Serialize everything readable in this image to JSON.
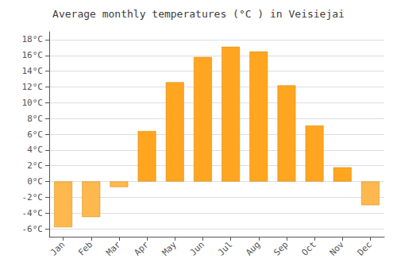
{
  "chart_data": {
    "type": "bar",
    "title": "Average monthly temperatures (°C ) in Veisiejai",
    "categories": [
      "Jan",
      "Feb",
      "Mar",
      "Apr",
      "May",
      "Jun",
      "Jul",
      "Aug",
      "Sep",
      "Oct",
      "Nov",
      "Dec"
    ],
    "values": [
      -5.8,
      -4.5,
      -0.7,
      6.4,
      12.6,
      15.8,
      17.1,
      16.5,
      12.2,
      7.1,
      1.8,
      -3.0
    ],
    "colors": [
      "#FFB84D",
      "#FFB84D",
      "#FFB84D",
      "#FFA520",
      "#FFA520",
      "#FFA520",
      "#FFA520",
      "#FFA520",
      "#FFA520",
      "#FFA520",
      "#FFA520",
      "#FFB84D"
    ],
    "ylim": [
      -7,
      19
    ],
    "yticks": [
      {
        "value": -6,
        "label": "-6°C"
      },
      {
        "value": -4,
        "label": "-4°C"
      },
      {
        "value": -2,
        "label": "-2°C"
      },
      {
        "value": 0,
        "label": "0°C"
      },
      {
        "value": 2,
        "label": "2°C"
      },
      {
        "value": 4,
        "label": "4°C"
      },
      {
        "value": 6,
        "label": "6°C"
      },
      {
        "value": 8,
        "label": "8°C"
      },
      {
        "value": 10,
        "label": "10°C"
      },
      {
        "value": 12,
        "label": "12°C"
      },
      {
        "value": 14,
        "label": "14°C"
      },
      {
        "value": 16,
        "label": "16°C"
      },
      {
        "value": 18,
        "label": "18°C"
      }
    ],
    "grid": true
  }
}
